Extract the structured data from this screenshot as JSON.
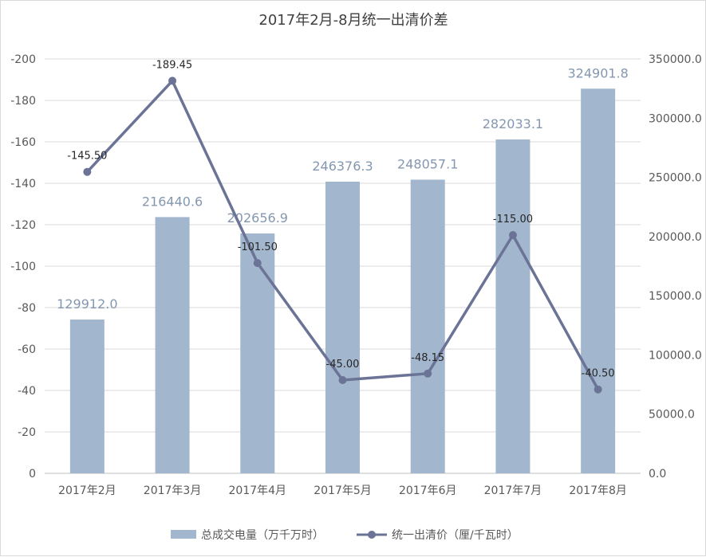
{
  "chart_data": {
    "type": "bar+line",
    "title": "2017年2月-8月统一出清价差",
    "categories": [
      "2017年2月",
      "2017年3月",
      "2017年4月",
      "2017年5月",
      "2017年6月",
      "2017年7月",
      "2017年8月"
    ],
    "series": [
      {
        "name": "总成交电量（万千万时）",
        "type": "bar",
        "axis": "right",
        "values": [
          129912.0,
          216440.6,
          202656.9,
          246376.3,
          248057.1,
          282033.1,
          324901.8
        ],
        "labels": [
          "129912.0",
          "216440.6",
          "202656.9",
          "246376.3",
          "248057.1",
          "282033.1",
          "324901.8"
        ],
        "color": "#a2b6cd"
      },
      {
        "name": "统一出清价（厘/千瓦时）",
        "type": "line",
        "axis": "left",
        "values": [
          -145.5,
          -189.45,
          -101.5,
          -45.0,
          -48.15,
          -115.0,
          -40.5
        ],
        "labels": [
          "-145.50",
          "-189.45",
          "-101.50",
          "-45.00",
          "-48.15",
          "-115.00",
          "-40.50"
        ],
        "color": "#6b7396"
      }
    ],
    "left_axis": {
      "ylim": [
        0,
        -200
      ],
      "ticks": [
        0,
        -20,
        -40,
        -60,
        -80,
        -100,
        -120,
        -140,
        -160,
        -180,
        -200
      ],
      "tick_labels": [
        "0",
        "-20",
        "-40",
        "-60",
        "-80",
        "-100",
        "-120",
        "-140",
        "-160",
        "-180",
        "-200"
      ],
      "direction": "reversed"
    },
    "right_axis": {
      "ylim": [
        0,
        350000
      ],
      "ticks": [
        0,
        50000,
        100000,
        150000,
        200000,
        250000,
        300000,
        350000
      ],
      "tick_labels": [
        "0.0",
        "50000.0",
        "100000.0",
        "150000.0",
        "200000.0",
        "250000.0",
        "300000.0",
        "350000.0"
      ]
    },
    "grid": true,
    "legend_position": "bottom"
  }
}
